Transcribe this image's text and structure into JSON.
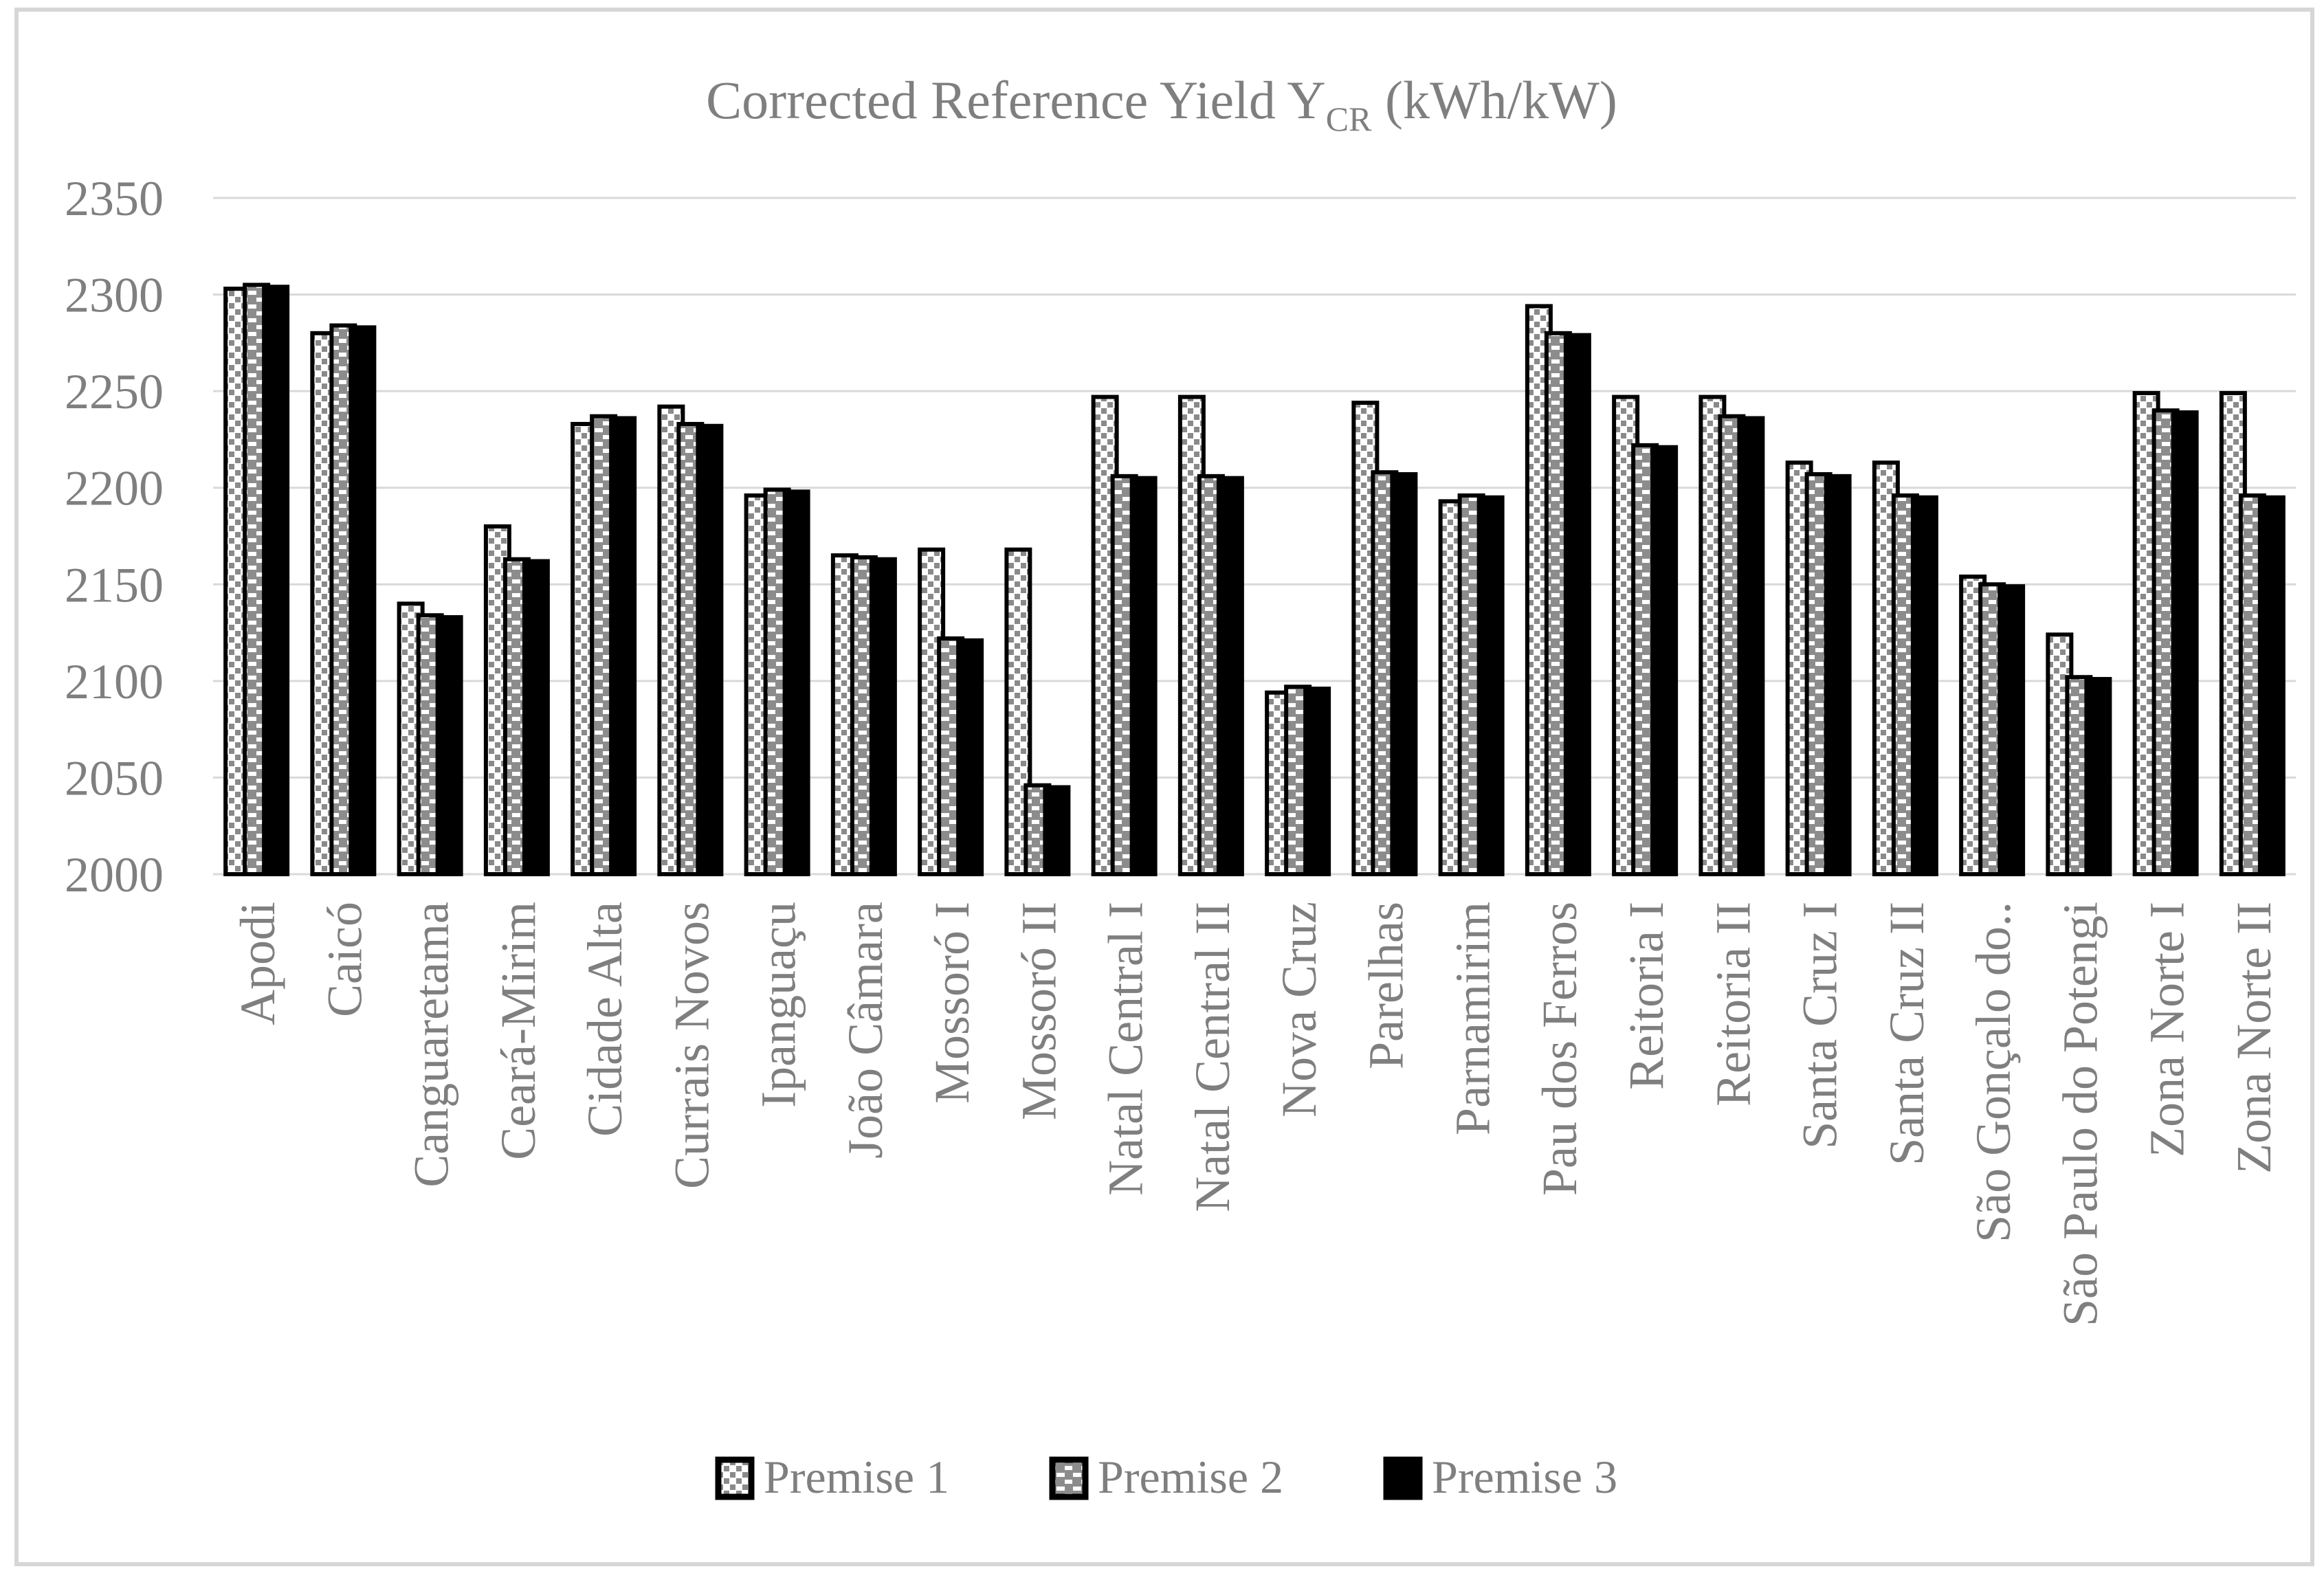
{
  "figure": {
    "background": "#ffffff",
    "border_color": "#d6d6d6"
  },
  "title": {
    "main": "Corrected Reference Yield Y",
    "sub": "CR",
    "tail": " (kWh/kW)",
    "color": "#7f7f7f"
  },
  "axes": {
    "y": {
      "min": 2000,
      "max": 2350,
      "step": 50,
      "tick_labels": [
        "2000",
        "2050",
        "2100",
        "2150",
        "2200",
        "2250",
        "2300",
        "2350"
      ],
      "tick_color": "#7f7f7f",
      "grid_color": "#d9d9d9"
    },
    "x": {
      "label_color": "#7f7f7f"
    }
  },
  "legend": {
    "text_color": "#7f7f7f",
    "items": [
      {
        "label": "Premise 1",
        "fill": "diagonal-hatch"
      },
      {
        "label": "Premise 2",
        "fill": "dash-brick"
      },
      {
        "label": "Premise 3",
        "fill": "solid-black"
      }
    ]
  },
  "chart_data": {
    "type": "bar",
    "title": "Corrected Reference Yield Y_CR (kWh/kW)",
    "xlabel": "",
    "ylabel": "",
    "ylim": [
      2000,
      2350
    ],
    "ytick_step": 50,
    "grid": true,
    "legend_position": "bottom",
    "categories": [
      "Apodi",
      "Caicó",
      "Canguaretama",
      "Ceará-Mirim",
      "Cidade Alta",
      "Currais Novos",
      "Ipanguaçu",
      "João Câmara",
      "Mossoró I",
      "Mossoró II",
      "Natal Central I",
      "Natal Central II",
      "Nova Cruz",
      "Parelhas",
      "Parnamirim",
      "Pau dos Ferros",
      "Reitoria I",
      "Reitoria II",
      "Santa Cruz I",
      "Santa Cruz II",
      "São Gonçalo do..",
      "São Paulo do Potengi",
      "Zona Norte I",
      "Zona Norte II"
    ],
    "series": [
      {
        "name": "Premise 1",
        "fill": "diagonal-hatch",
        "values": [
          2303,
          2280,
          2140,
          2180,
          2233,
          2242,
          2196,
          2165,
          2168,
          2168,
          2247,
          2247,
          2094,
          2244,
          2193,
          2294,
          2247,
          2247,
          2213,
          2213,
          2154,
          2124,
          2249,
          2249
        ]
      },
      {
        "name": "Premise 2",
        "fill": "dash-brick",
        "values": [
          2305,
          2284,
          2134,
          2163,
          2237,
          2233,
          2199,
          2164,
          2122,
          2046,
          2206,
          2206,
          2097,
          2208,
          2196,
          2280,
          2222,
          2237,
          2207,
          2196,
          2150,
          2102,
          2240,
          2196
        ]
      },
      {
        "name": "Premise 3",
        "fill": "solid-black",
        "values": [
          2304,
          2283,
          2133,
          2162,
          2236,
          2232,
          2198,
          2163,
          2121,
          2045,
          2205,
          2205,
          2096,
          2207,
          2195,
          2279,
          2221,
          2236,
          2206,
          2195,
          2149,
          2101,
          2239,
          2195
        ]
      }
    ]
  }
}
